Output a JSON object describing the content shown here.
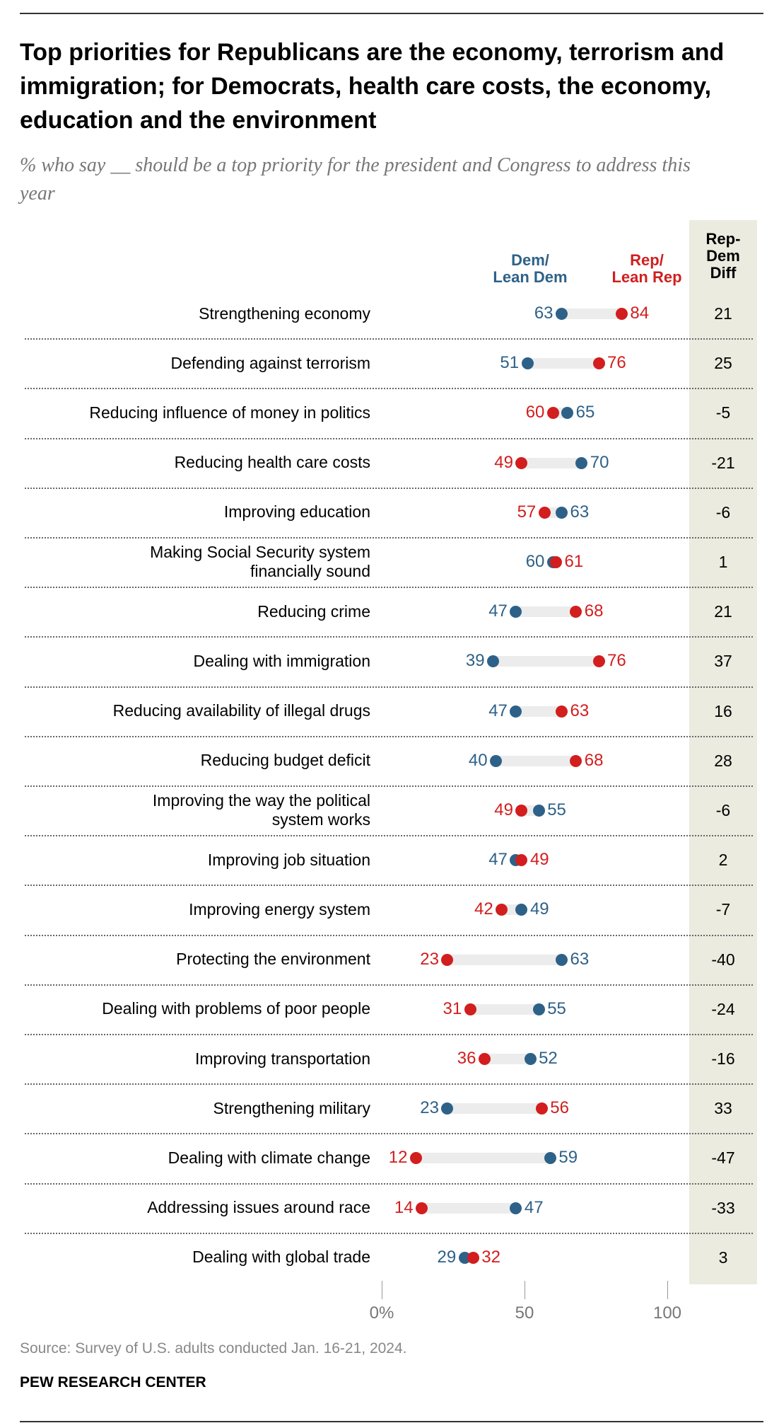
{
  "title": "Top priorities for Republicans are the economy, terrorism and immigration; for Democrats, health care costs, the economy, education and the environment",
  "subtitle": "% who say __ should be a top priority for the president and Congress to address this year",
  "source": "Source: Survey of U.S. adults conducted Jan. 16-21, 2024.",
  "brand": "PEW RESEARCH CENTER",
  "colors": {
    "dem": "#2e6188",
    "rep": "#d21e1e",
    "diff_bg": "#ecebe0"
  },
  "chart_data": {
    "type": "dot",
    "xlim": [
      0,
      100
    ],
    "xticks": [
      "0%",
      "50",
      "100"
    ],
    "xtick_values": [
      0,
      50,
      100
    ],
    "legend": {
      "dem": "Dem/\nLean Dem",
      "rep": "Rep/\nLean Rep",
      "diff": "Rep-\nDem\nDiff"
    },
    "rows": [
      {
        "label": "Strengthening economy",
        "dem": 63,
        "rep": 84,
        "diff": "21"
      },
      {
        "label": "Defending against terrorism",
        "dem": 51,
        "rep": 76,
        "diff": "25"
      },
      {
        "label": "Reducing influence of money in politics",
        "dem": 65,
        "rep": 60,
        "diff": "-5"
      },
      {
        "label": "Reducing health care costs",
        "dem": 70,
        "rep": 49,
        "diff": "-21"
      },
      {
        "label": "Improving education",
        "dem": 63,
        "rep": 57,
        "diff": "-6"
      },
      {
        "label": "Making Social Security system\nfinancially sound",
        "dem": 60,
        "rep": 61,
        "diff": "1"
      },
      {
        "label": "Reducing crime",
        "dem": 47,
        "rep": 68,
        "diff": "21"
      },
      {
        "label": "Dealing with immigration",
        "dem": 39,
        "rep": 76,
        "diff": "37"
      },
      {
        "label": "Reducing availability of illegal drugs",
        "dem": 47,
        "rep": 63,
        "diff": "16"
      },
      {
        "label": "Reducing budget deficit",
        "dem": 40,
        "rep": 68,
        "diff": "28"
      },
      {
        "label": "Improving the way the political\nsystem works",
        "dem": 55,
        "rep": 49,
        "diff": "-6"
      },
      {
        "label": "Improving job situation",
        "dem": 47,
        "rep": 49,
        "diff": "2"
      },
      {
        "label": "Improving energy system",
        "dem": 49,
        "rep": 42,
        "diff": "-7"
      },
      {
        "label": "Protecting the environment",
        "dem": 63,
        "rep": 23,
        "diff": "-40"
      },
      {
        "label": "Dealing with problems of poor people",
        "dem": 55,
        "rep": 31,
        "diff": "-24"
      },
      {
        "label": "Improving transportation",
        "dem": 52,
        "rep": 36,
        "diff": "-16"
      },
      {
        "label": "Strengthening military",
        "dem": 23,
        "rep": 56,
        "diff": "33"
      },
      {
        "label": "Dealing with climate change",
        "dem": 59,
        "rep": 12,
        "diff": "-47"
      },
      {
        "label": "Addressing issues around race",
        "dem": 47,
        "rep": 14,
        "diff": "-33"
      },
      {
        "label": "Dealing with global trade",
        "dem": 29,
        "rep": 32,
        "diff": "3"
      }
    ]
  }
}
